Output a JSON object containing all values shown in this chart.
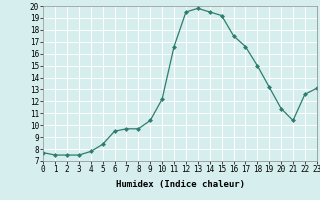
{
  "x": [
    0,
    1,
    2,
    3,
    4,
    5,
    6,
    7,
    8,
    9,
    10,
    11,
    12,
    13,
    14,
    15,
    16,
    17,
    18,
    19,
    20,
    21,
    22,
    23
  ],
  "y": [
    7.7,
    7.5,
    7.5,
    7.5,
    7.8,
    8.4,
    9.5,
    9.7,
    9.7,
    10.4,
    12.2,
    16.6,
    19.5,
    19.8,
    19.5,
    19.2,
    17.5,
    16.6,
    15.0,
    13.2,
    11.4,
    10.4,
    12.6,
    13.1
  ],
  "xlabel": "Humidex (Indice chaleur)",
  "ylim": [
    7,
    20
  ],
  "xlim": [
    0,
    23
  ],
  "yticks": [
    7,
    8,
    9,
    10,
    11,
    12,
    13,
    14,
    15,
    16,
    17,
    18,
    19,
    20
  ],
  "xticks": [
    0,
    1,
    2,
    3,
    4,
    5,
    6,
    7,
    8,
    9,
    10,
    11,
    12,
    13,
    14,
    15,
    16,
    17,
    18,
    19,
    20,
    21,
    22,
    23
  ],
  "line_color": "#2e7d6e",
  "marker": "D",
  "marker_size": 2.0,
  "bg_color": "#d6eeee",
  "grid_color": "#ffffff",
  "font_family": "monospace",
  "tick_fontsize": 5.5,
  "xlabel_fontsize": 6.5
}
